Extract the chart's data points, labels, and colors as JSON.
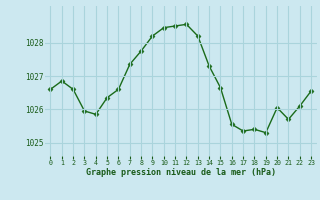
{
  "x": [
    0,
    1,
    2,
    3,
    4,
    5,
    6,
    7,
    8,
    9,
    10,
    11,
    12,
    13,
    14,
    15,
    16,
    17,
    18,
    19,
    20,
    21,
    22,
    23
  ],
  "y": [
    1026.6,
    1026.85,
    1026.6,
    1025.95,
    1025.85,
    1026.35,
    1026.6,
    1027.35,
    1027.75,
    1028.2,
    1028.45,
    1028.5,
    1028.55,
    1028.2,
    1027.3,
    1026.65,
    1025.55,
    1025.35,
    1025.4,
    1025.3,
    1026.05,
    1025.7,
    1026.1,
    1026.55
  ],
  "line_color": "#1a6b1a",
  "marker": "D",
  "markersize": 2.5,
  "linewidth": 1.0,
  "bg_color": "#cce8f0",
  "grid_color": "#aad4dc",
  "xlabel": "Graphe pression niveau de la mer (hPa)",
  "xlabel_color": "#1a5c1a",
  "tick_color": "#1a5c1a",
  "ylim": [
    1024.6,
    1029.1
  ],
  "yticks": [
    1025,
    1026,
    1027,
    1028
  ],
  "xticks": [
    0,
    1,
    2,
    3,
    4,
    5,
    6,
    7,
    8,
    9,
    10,
    11,
    12,
    13,
    14,
    15,
    16,
    17,
    18,
    19,
    20,
    21,
    22,
    23
  ],
  "xlim": [
    -0.5,
    23.5
  ]
}
